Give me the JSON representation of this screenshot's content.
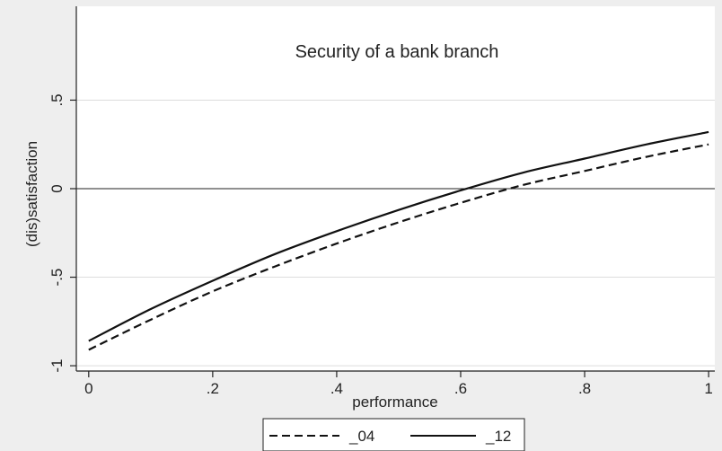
{
  "chart_data": {
    "type": "line",
    "title": "Security of a bank branch",
    "xlabel": "performance",
    "ylabel": "(dis)satisfaction",
    "xlim": [
      -0.02,
      1.01
    ],
    "ylim": [
      -1.03,
      1.03
    ],
    "x_ticks": [
      0,
      0.2,
      0.4,
      0.6,
      0.8,
      1
    ],
    "x_tick_labels": [
      "0",
      ".2",
      ".4",
      ".6",
      ".8",
      "1"
    ],
    "y_ticks": [
      -1,
      -0.5,
      0,
      0.5
    ],
    "y_tick_labels": [
      "-1",
      "-.5",
      "0",
      ".5"
    ],
    "grid": true,
    "reference_line_y": 0,
    "legend_position": "bottom",
    "x": [
      0,
      0.1,
      0.2,
      0.3,
      0.4,
      0.5,
      0.6,
      0.7,
      0.8,
      0.9,
      1.0
    ],
    "series": [
      {
        "name": "_04",
        "style": "dashed",
        "color": "#111111",
        "values": [
          -0.91,
          -0.74,
          -0.58,
          -0.44,
          -0.31,
          -0.19,
          -0.08,
          0.02,
          0.1,
          0.18,
          0.25
        ]
      },
      {
        "name": "_12",
        "style": "solid",
        "color": "#111111",
        "values": [
          -0.86,
          -0.68,
          -0.52,
          -0.37,
          -0.24,
          -0.12,
          -0.01,
          0.09,
          0.17,
          0.25,
          0.32
        ]
      }
    ]
  },
  "colors": {
    "page_background": "#eeeeee",
    "plot_background": "#ffffff",
    "grid": "#dddddd",
    "axis": "#222222"
  }
}
